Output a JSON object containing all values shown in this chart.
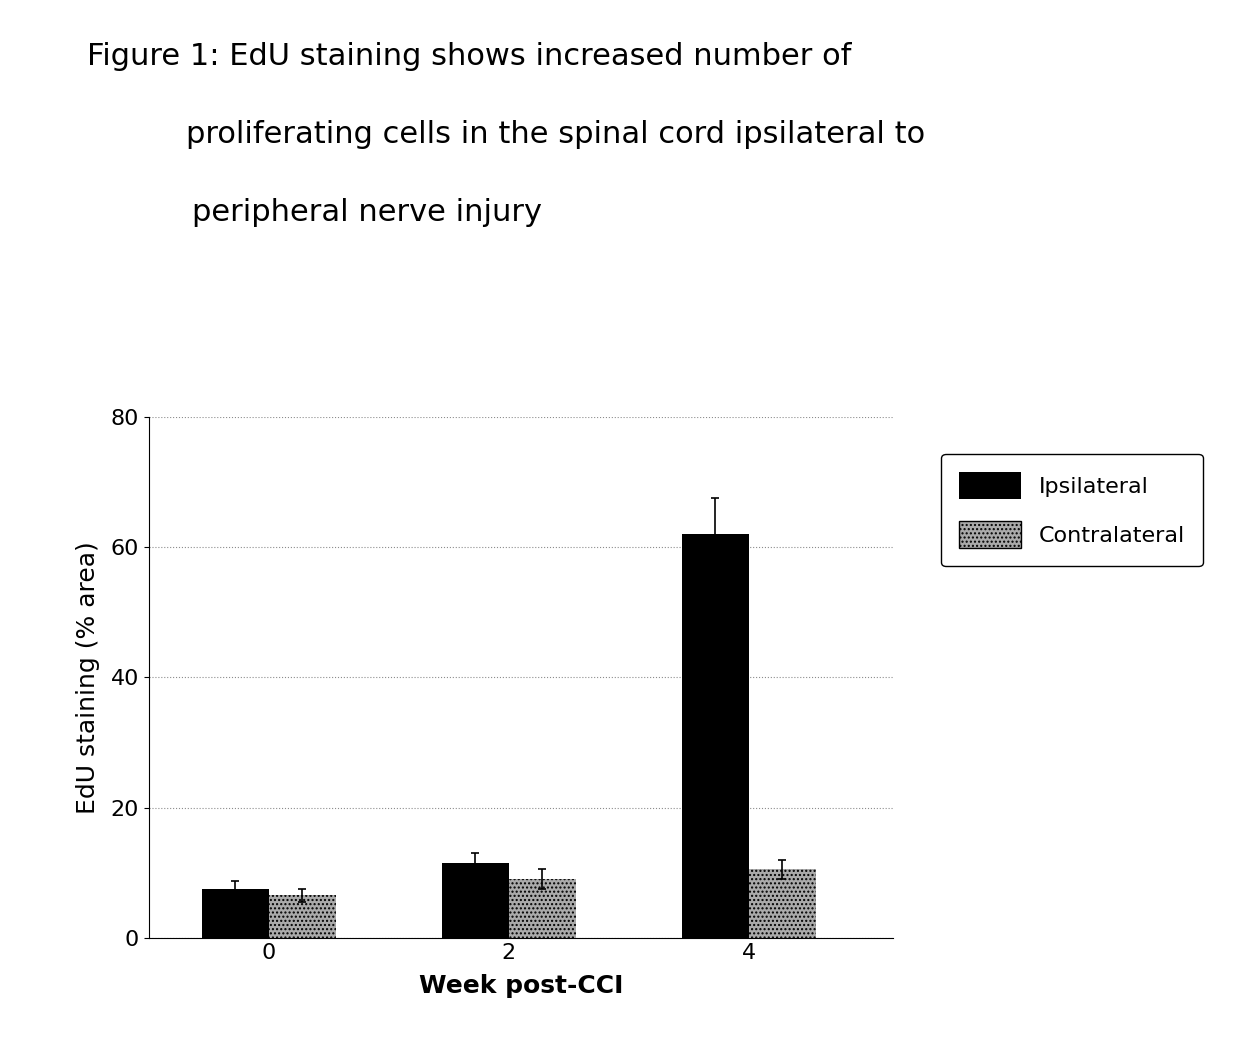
{
  "title_line1": "Figure 1: EdU staining shows increased number of",
  "title_line2": "proliferating cells in the spinal cord ipsilateral to",
  "title_line3": "peripheral nerve injury",
  "weeks": [
    "0",
    "2",
    "4"
  ],
  "ipsilateral_values": [
    7.5,
    11.5,
    62.0
  ],
  "ipsilateral_errors": [
    1.2,
    1.5,
    5.5
  ],
  "contralateral_values": [
    6.5,
    9.0,
    10.5
  ],
  "contralateral_errors": [
    1.0,
    1.5,
    1.5
  ],
  "ipsilateral_color": "#000000",
  "contralateral_color": "#aaaaaa",
  "contralateral_hatch": "....",
  "xlabel": "Week post-CCI",
  "ylabel": "EdU staining (% area)",
  "ylim": [
    0,
    80
  ],
  "yticks": [
    0,
    20,
    40,
    60,
    80
  ],
  "background_color": "#ffffff",
  "bar_width": 0.28,
  "legend_labels": [
    "Ipsilateral",
    "Contralateral"
  ],
  "title_fontsize": 22,
  "axis_label_fontsize": 18,
  "tick_fontsize": 16,
  "legend_fontsize": 16
}
